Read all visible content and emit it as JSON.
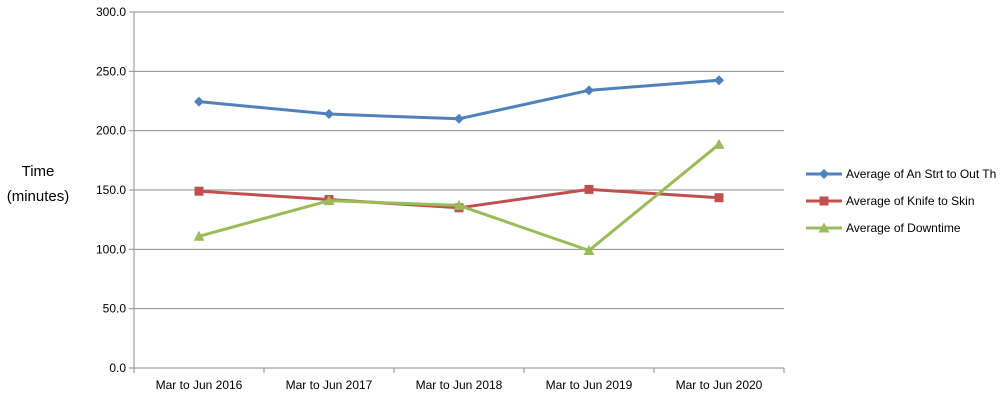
{
  "chart_data": {
    "type": "line",
    "title": "",
    "xlabel": "",
    "ylabel_line1": "Time",
    "ylabel_line2": "(minutes)",
    "categories": [
      "Mar to Jun 2016",
      "Mar to Jun 2017",
      "Mar to Jun 2018",
      "Mar to Jun 2019",
      "Mar to Jun 2020"
    ],
    "ylim": [
      0,
      300
    ],
    "yticks": [
      "0.0",
      "50.0",
      "100.0",
      "150.0",
      "200.0",
      "250.0",
      "300.0"
    ],
    "grid": "horizontal",
    "legend_position": "right",
    "series": [
      {
        "name": "Average of An Strt to Out Th",
        "values": [
          224.5,
          214,
          210,
          234,
          242.5
        ],
        "color": "#4F81BD",
        "marker": "diamond"
      },
      {
        "name": "Average of Knife to Skin",
        "values": [
          149,
          142,
          135,
          150.5,
          143.5
        ],
        "color": "#C0504D",
        "marker": "square"
      },
      {
        "name": "Average of Downtime",
        "values": [
          111,
          141,
          137,
          99,
          188.5
        ],
        "color": "#9BBB59",
        "marker": "triangle"
      }
    ]
  }
}
